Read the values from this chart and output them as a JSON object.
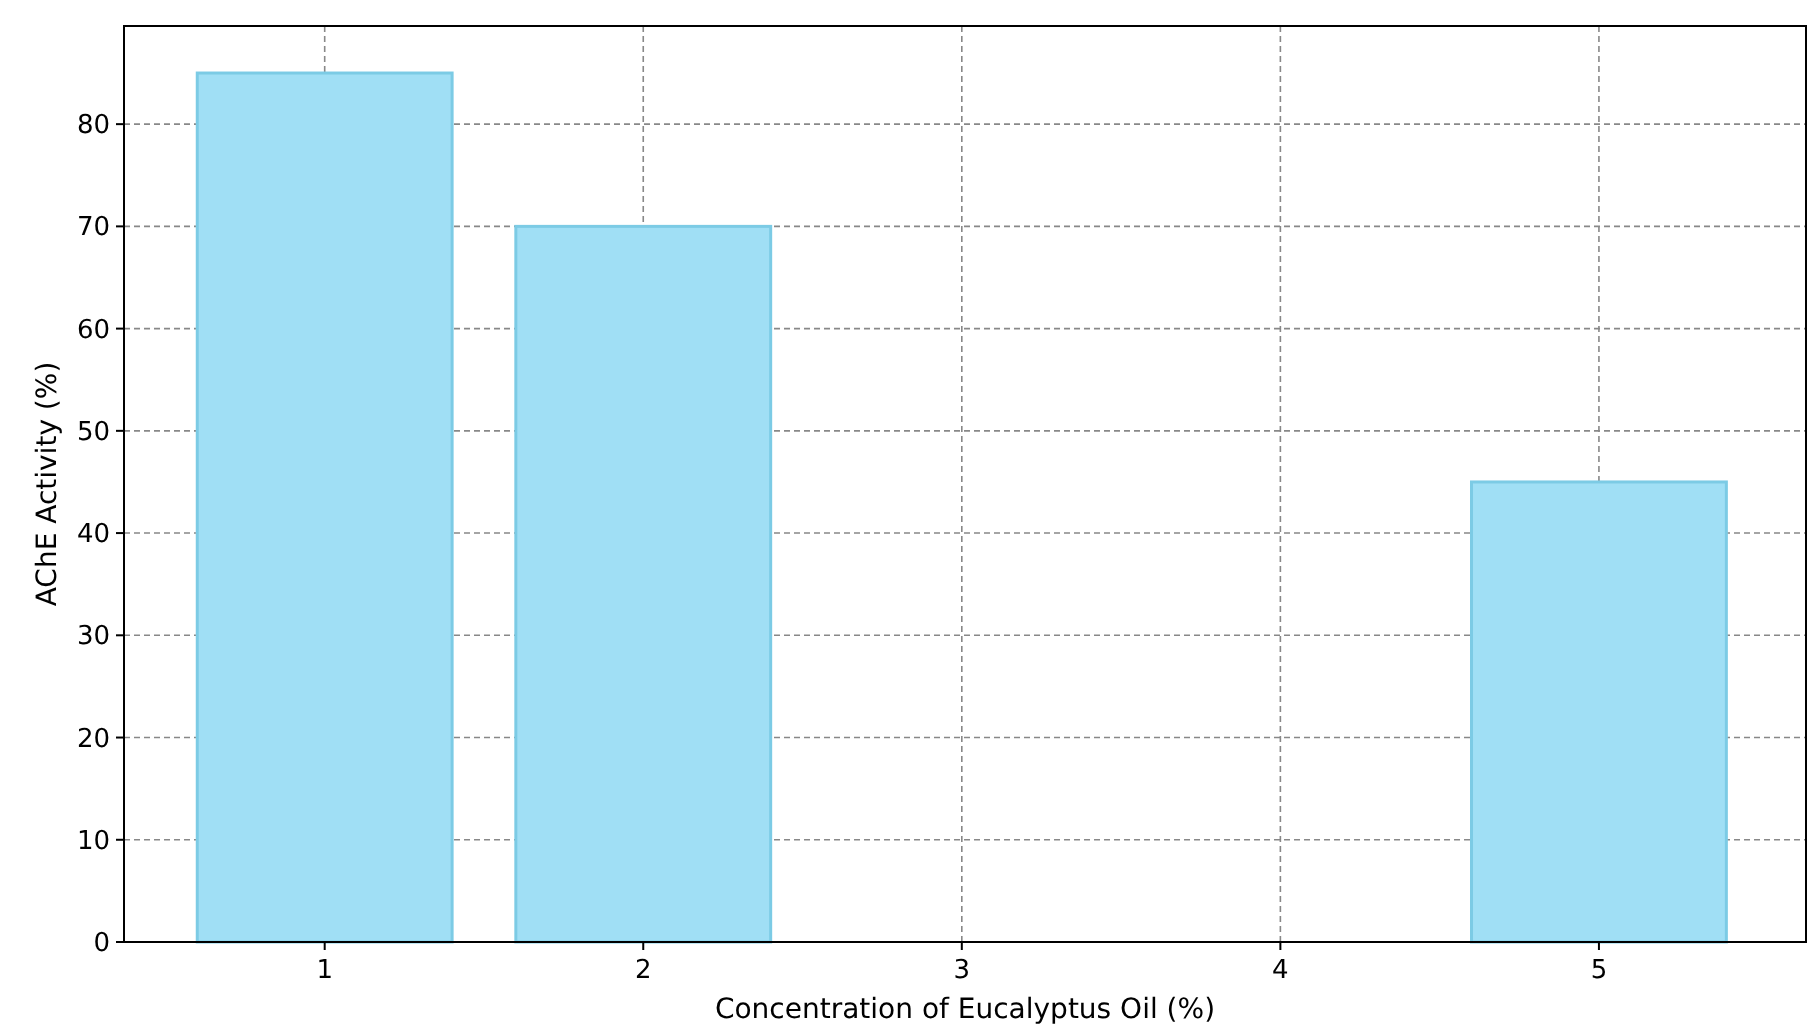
{
  "chart_data": {
    "type": "bar",
    "xlabel": "Concentration of Eucalyptus Oil (%)",
    "ylabel": "AChE Activity (%)",
    "x": [
      1,
      2,
      5
    ],
    "values": [
      85,
      70,
      45
    ],
    "color": "#a0dff5",
    "xlim": [
      0.37,
      5.65
    ],
    "xticks": [
      1,
      2,
      3,
      4,
      5
    ],
    "ylim": [
      0,
      89.6
    ],
    "yticks": [
      0,
      10,
      20,
      30,
      40,
      50,
      60,
      70,
      80
    ],
    "grid": true
  }
}
